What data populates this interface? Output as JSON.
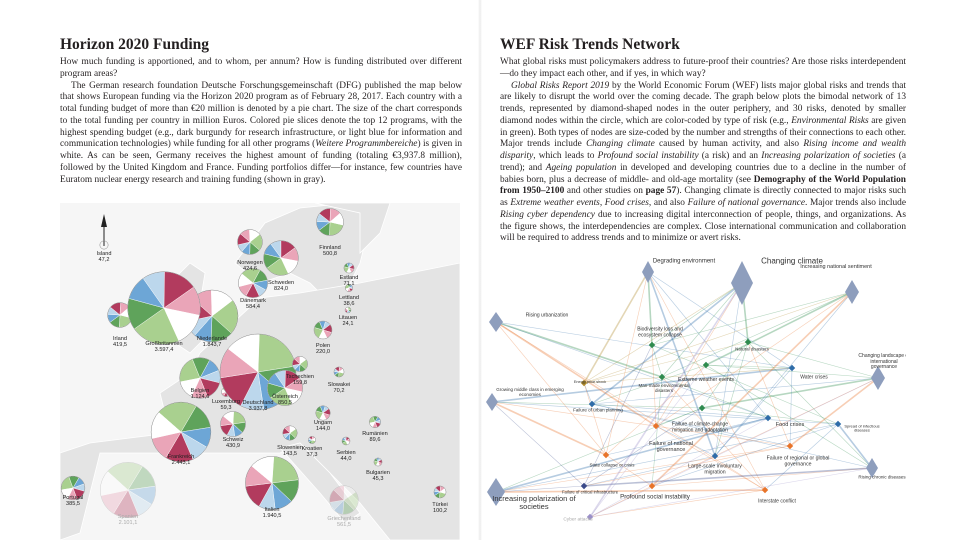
{
  "left": {
    "title": "Horizon 2020 Funding",
    "lead": "How much funding is apportioned, and to whom, per annum? How is funding distributed over different program areas?",
    "body": [
      {
        "text": "The German research foundation Deutsche Forschungsgemeinschaft (DFG) published the map below that shows European funding via the Horizon 2020 program as of February 28, 2017. Each country with a total funding budget of more than €20 million is denoted by a pie chart. The size of the chart corresponds to the total funding per country in million Euros. Colored pie slices denote the top 12 programs, with the highest spending budget (e.g., dark burgundy for research infrastructure, or light blue for information and communication technologies) while funding for all other programs ("
      },
      {
        "text": "Weitere Programmbereiche",
        "emphasis": "italic"
      },
      {
        "text": ") is given in white. As can be seen, Germany receives the highest amount of funding (totaling €3,937.8 million), followed by the United Kingdom and France. Funding portfolios differ—for instance, few countries have Euratom nuclear energy research and training funding (shown in gray)."
      }
    ],
    "map": {
      "countries": [
        {
          "name": "Island",
          "label": "47,2",
          "funding": 47.2
        },
        {
          "name": "Norwegen",
          "label": "424,6",
          "funding": 424.6
        },
        {
          "name": "Finnland",
          "label": "500,8",
          "funding": 500.8
        },
        {
          "name": "Schweden",
          "label": "824,0",
          "funding": 824.0
        },
        {
          "name": "Estland",
          "label": "71,1",
          "funding": 71.1
        },
        {
          "name": "Lettland",
          "label": "38,6",
          "funding": 38.6
        },
        {
          "name": "Dänemark",
          "label": "584,4",
          "funding": 584.4
        },
        {
          "name": "Litauen",
          "label": "24,1",
          "funding": 24.1
        },
        {
          "name": "Niederlande",
          "label": "1.843,7",
          "funding": 1843.7
        },
        {
          "name": "Irland",
          "label": "419,5",
          "funding": 419.5
        },
        {
          "name": "Großbritannien",
          "label": "3.597,4",
          "funding": 3597.4
        },
        {
          "name": "Polen",
          "label": "220,0",
          "funding": 220.0
        },
        {
          "name": "Belgien",
          "label": "1.124,6",
          "funding": 1124.6
        },
        {
          "name": "Luxemburg",
          "label": "59,3",
          "funding": 59.3
        },
        {
          "name": "Deutschland",
          "label": "3.937,8",
          "funding": 3937.8
        },
        {
          "name": "Tschechien",
          "label": "159,8",
          "funding": 159.8
        },
        {
          "name": "Slowakei",
          "label": "70,2",
          "funding": 70.2
        },
        {
          "name": "Österreich",
          "label": "850,5",
          "funding": 850.5
        },
        {
          "name": "Ungarn",
          "label": "144,0",
          "funding": 144.0
        },
        {
          "name": "Rumänien",
          "label": "89,6",
          "funding": 89.6
        },
        {
          "name": "Frankreich",
          "label": "2.443,1",
          "funding": 2443.1
        },
        {
          "name": "Schweiz",
          "label": "430,9",
          "funding": 430.9
        },
        {
          "name": "Slowenien",
          "label": "143,5",
          "funding": 143.5
        },
        {
          "name": "Kroatien",
          "label": "37,3",
          "funding": 37.3
        },
        {
          "name": "Serbien",
          "label": "44,0",
          "funding": 44.0
        },
        {
          "name": "Bulgarien",
          "label": "45,3",
          "funding": 45.3
        },
        {
          "name": "Portugal",
          "label": "385,5",
          "funding": 385.5
        },
        {
          "name": "Spanien",
          "label": "2.101,1",
          "funding": 2101.1
        },
        {
          "name": "Italien",
          "label": "1.940,5",
          "funding": 1940.5
        },
        {
          "name": "Griechenland",
          "label": "561,5",
          "funding": 561.5
        },
        {
          "name": "Türkei",
          "label": "100,2",
          "funding": 100.2
        }
      ]
    }
  },
  "right": {
    "title": "WEF Risk Trends Network",
    "lead": "What global risks must policymakers address to future-proof their countries? Are those risks interdependent—do they impact each other, and if yes, in which way?",
    "body": [
      {
        "text": "Global Risks Report 2019",
        "emphasis": "italic"
      },
      {
        "text": " by the World Economic Forum (WEF) lists major global risks and trends that are likely to disrupt the world over the coming decade. The graph below plots the bimodal network of 13 trends, represented by diamond-shaped nodes in the outer periphery, and 30 risks, denoted by smaller diamond nodes within the circle, which are color-coded by type of risk (e.g., "
      },
      {
        "text": "Environmental Risks",
        "emphasis": "italic"
      },
      {
        "text": " are given in green). Both types of nodes are size-coded by the number and strengths of their connections to each other. Major trends include "
      },
      {
        "text": "Changing climate",
        "emphasis": "italic"
      },
      {
        "text": " caused by human activity, and also "
      },
      {
        "text": "Rising income and wealth disparity",
        "emphasis": "italic"
      },
      {
        "text": ", which leads to "
      },
      {
        "text": "Profound social instability",
        "emphasis": "italic"
      },
      {
        "text": " (a risk) and an "
      },
      {
        "text": "Increasing polarization of societies",
        "emphasis": "italic"
      },
      {
        "text": " (a trend); and "
      },
      {
        "text": "Ageing population",
        "emphasis": "italic"
      },
      {
        "text": " in developed and developing countries due to a decline in the number of babies born, plus a decrease of middle- and old-age mortality (see "
      },
      {
        "text": "Demography of the World Population from 1950–2100",
        "emphasis": "bold"
      },
      {
        "text": " and other studies on "
      },
      {
        "text": "page 57",
        "emphasis": "bold"
      },
      {
        "text": "). Changing climate is directly connected to major risks such as "
      },
      {
        "text": "Extreme weather events, Food crises,",
        "emphasis": "italic"
      },
      {
        "text": " and also "
      },
      {
        "text": "Failure of national governance",
        "emphasis": "italic"
      },
      {
        "text": ". Major trends also include "
      },
      {
        "text": "Rising cyber dependency",
        "emphasis": "italic"
      },
      {
        "text": " due to increasing digital interconnection of people, things, and organizations. As the figure shows, the interdependencies are complex. Close international communication and collaboration will be required to address trends and to minimize or avert risks."
      }
    ],
    "network": {
      "trends": [
        "Degrading environment",
        "Changing climate",
        "Increasing national sentiment",
        "Rising urbanization",
        "Changing landscape of international governance",
        "Growing middle class in emerging economies",
        "Increasing polarization of societies",
        "Rising chronic diseases"
      ],
      "risks": [
        "Biodiversity loss and ecosystem collapse",
        "Natural disasters",
        "Extreme weather events",
        "Man-made environmental disasters",
        "Failure of climate-change mitigation and adaptation",
        "Water crises",
        "Food crises",
        "Spread of infectious diseases",
        "Large-scale involuntary migration",
        "Failure of urban planning",
        "Profound social instability",
        "Failure of national governance",
        "Failure of regional or global governance",
        "State collapse or crisis",
        "Interstate conflict",
        "Failure of critical infrastructure",
        "Energy price shock",
        "Cyber attacks"
      ]
    }
  }
}
